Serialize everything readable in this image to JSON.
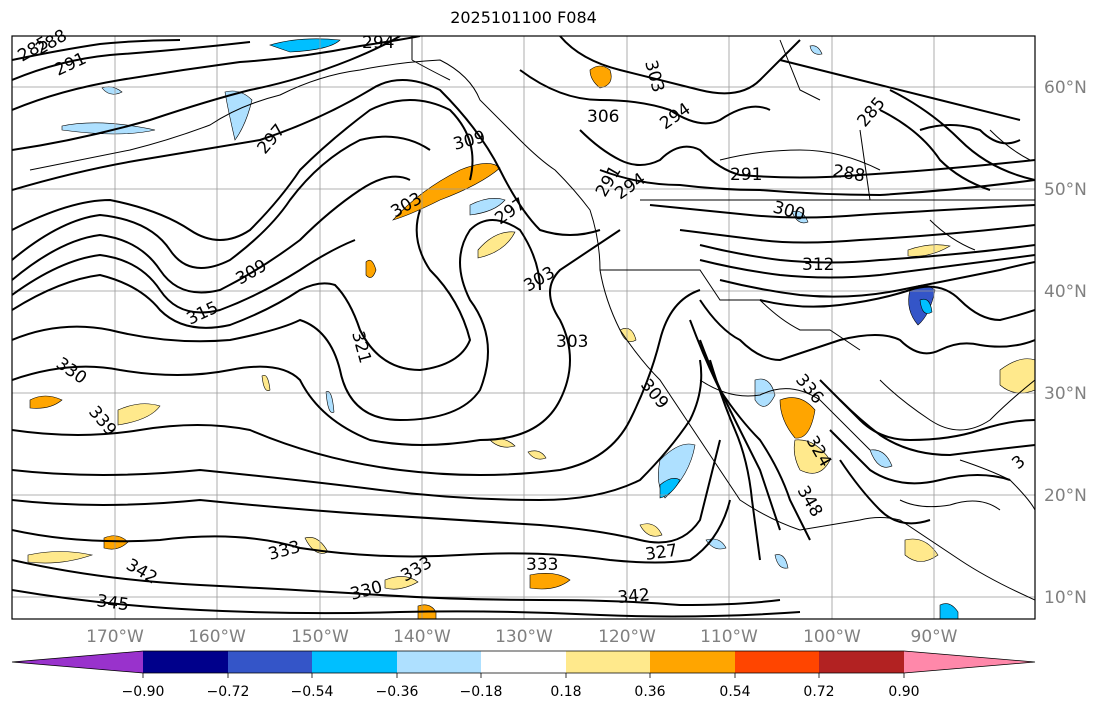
{
  "title": "2025101100 F084",
  "lat_ticks": [
    "60°N",
    "50°N",
    "40°N",
    "30°N",
    "20°N",
    "10°N"
  ],
  "lon_ticks": [
    "170°W",
    "160°W",
    "150°W",
    "140°W",
    "130°W",
    "120°W",
    "110°W",
    "100°W",
    "90°W"
  ],
  "colorbar": {
    "colors": [
      "#9932cc",
      "#00008b",
      "#3455c8",
      "#00bfff",
      "#aee0ff",
      "#ffffff",
      "#ffe98c",
      "#ffa500",
      "#ff4500",
      "#b22222",
      "#ff88aa"
    ],
    "ticks": [
      "−0.90",
      "−0.72",
      "−0.54",
      "−0.36",
      "−0.18",
      "0.18",
      "0.36",
      "0.54",
      "0.72",
      "0.90"
    ]
  },
  "contour_labels": [
    {
      "text": "285"
    },
    {
      "text": "288"
    },
    {
      "text": "291"
    },
    {
      "text": "294"
    },
    {
      "text": "297"
    },
    {
      "text": "309"
    },
    {
      "text": "303"
    },
    {
      "text": "306"
    },
    {
      "text": "303"
    },
    {
      "text": "294"
    },
    {
      "text": "291"
    },
    {
      "text": "294"
    },
    {
      "text": "297"
    },
    {
      "text": "291"
    },
    {
      "text": "288"
    },
    {
      "text": "285"
    },
    {
      "text": "300"
    },
    {
      "text": "312"
    },
    {
      "text": "309"
    },
    {
      "text": "315"
    },
    {
      "text": "303"
    },
    {
      "text": "303"
    },
    {
      "text": "321"
    },
    {
      "text": "330"
    },
    {
      "text": "339"
    },
    {
      "text": "309"
    },
    {
      "text": "336"
    },
    {
      "text": "324"
    },
    {
      "text": "348"
    },
    {
      "text": "333"
    },
    {
      "text": "342"
    },
    {
      "text": "345"
    },
    {
      "text": "330"
    },
    {
      "text": "333"
    },
    {
      "text": "333"
    },
    {
      "text": "327"
    },
    {
      "text": "342"
    },
    {
      "text": "3"
    }
  ]
}
